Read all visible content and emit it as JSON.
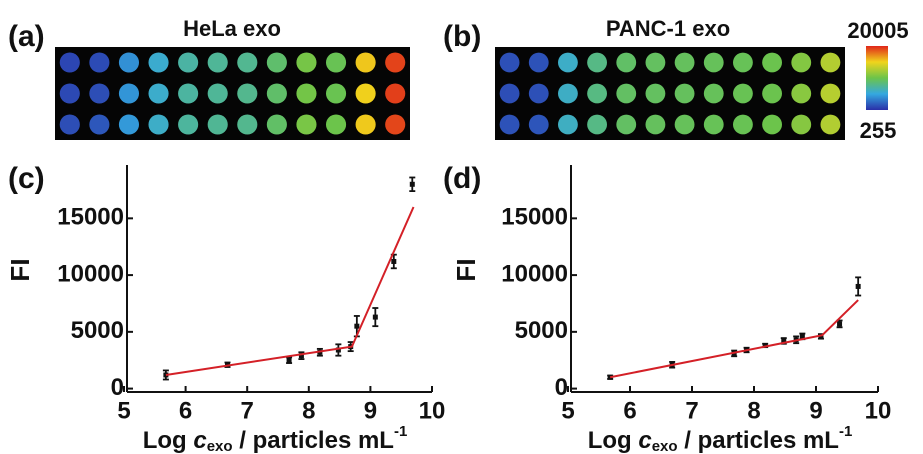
{
  "chart_data": [
    {
      "type": "heatmap",
      "panel_label": "(a)",
      "title": "HeLa exo",
      "zlim": [
        255,
        20005
      ],
      "colormap": [
        "#2a2fa8",
        "#34a8e0",
        "#6cc44a",
        "#f0d51c",
        "#e0261a"
      ],
      "values": [
        [
          1200,
          1400,
          4200,
          5800,
          7200,
          7600,
          7800,
          9000,
          10500,
          9800,
          15500,
          19200
        ],
        [
          1300,
          1500,
          4400,
          5900,
          7300,
          7600,
          7900,
          9100,
          10400,
          9900,
          15200,
          19300
        ],
        [
          1500,
          1900,
          4600,
          6000,
          7400,
          7700,
          7900,
          9200,
          10600,
          10100,
          15400,
          19100
        ]
      ]
    },
    {
      "type": "heatmap",
      "panel_label": "(b)",
      "title": "PANC-1 exo",
      "zlim": [
        255,
        20005
      ],
      "colormap": [
        "#2a2fa8",
        "#34a8e0",
        "#6cc44a",
        "#f0d51c",
        "#e0261a"
      ],
      "colorbar": true,
      "zticks": [
        255,
        20005
      ],
      "values": [
        [
          1600,
          1700,
          6000,
          8200,
          9200,
          9400,
          9500,
          9600,
          9700,
          10000,
          11000,
          12800
        ],
        [
          1500,
          1600,
          6100,
          8300,
          9300,
          9400,
          9500,
          9600,
          9800,
          10000,
          11200,
          12900
        ],
        [
          1700,
          1800,
          6200,
          8200,
          9300,
          9500,
          9600,
          9700,
          9800,
          10100,
          11100,
          12700
        ]
      ]
    },
    {
      "type": "scatter",
      "panel_label": "(c)",
      "y_label": "FI",
      "x_label": {
        "prefix": "Log ",
        "var": "c",
        "sub": "exo",
        "rest": " / particles mL",
        "sup": "-1"
      },
      "xlim": [
        5,
        10
      ],
      "xticks": [
        5,
        6,
        7,
        8,
        9,
        10
      ],
      "ylim": [
        -300,
        19700
      ],
      "yticks": [
        0,
        5000,
        10000,
        15000
      ],
      "series": [
        {
          "color": "#111111",
          "x": [
            5.68,
            6.68,
            7.68,
            7.88,
            8.18,
            8.48,
            8.68,
            8.78,
            9.08,
            9.38,
            9.68
          ],
          "values": [
            1200,
            2100,
            2500,
            2900,
            3200,
            3400,
            3700,
            5500,
            6300,
            11200,
            18000
          ],
          "errors": [
            400,
            200,
            250,
            300,
            300,
            500,
            400,
            900,
            800,
            600,
            600
          ]
        },
        {
          "type": "line",
          "color": "#d42027",
          "x": [
            5.68,
            8.7,
            9.7
          ],
          "values": [
            1200,
            3700,
            16000
          ]
        }
      ]
    },
    {
      "type": "scatter",
      "panel_label": "(d)",
      "y_label": "FI",
      "x_label": {
        "prefix": "Log ",
        "var": "c",
        "sub": "exo",
        "rest": " / particles mL",
        "sup": "-1"
      },
      "xlim": [
        5,
        10
      ],
      "xticks": [
        5,
        6,
        7,
        8,
        9,
        10
      ],
      "ylim": [
        -300,
        19700
      ],
      "yticks": [
        0,
        5000,
        10000,
        15000
      ],
      "series": [
        {
          "color": "#111111",
          "x": [
            5.68,
            6.68,
            7.68,
            7.88,
            8.18,
            8.48,
            8.68,
            8.78,
            9.08,
            9.38,
            9.68
          ],
          "values": [
            1000,
            2100,
            3100,
            3400,
            3800,
            4200,
            4300,
            4600,
            4600,
            5700,
            9000
          ],
          "errors": [
            150,
            250,
            250,
            200,
            150,
            250,
            300,
            250,
            200,
            300,
            800
          ]
        },
        {
          "type": "line",
          "color": "#d42027",
          "x": [
            5.68,
            9.1,
            9.68
          ],
          "values": [
            1000,
            4700,
            7800
          ]
        }
      ]
    }
  ]
}
